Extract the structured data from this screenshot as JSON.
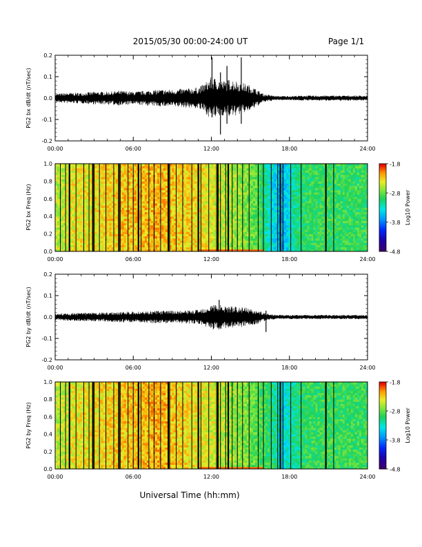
{
  "header": {
    "title": "2015/05/30  00:00-24:00 UT",
    "page": "Page 1/1"
  },
  "footer": {
    "xlabel": "Universal Time (hh:mm)"
  },
  "chart_data": [
    {
      "type": "line",
      "id": "bx-waveform",
      "ylabel": "PG2 bx dB/dt (nT/sec)",
      "xlim": [
        0,
        24
      ],
      "ylim": [
        -0.2,
        0.2
      ],
      "xticks": [
        "00:00",
        "06:00",
        "12:00",
        "18:00",
        "24:00"
      ],
      "yticks": [
        "-0.2",
        "-0.1",
        "0.0",
        "0.1",
        "0.2"
      ],
      "series": [
        {
          "x": [
            0,
            1,
            2,
            3,
            4,
            5,
            6,
            7,
            8,
            9,
            10,
            11,
            11.5,
            12,
            12.5,
            13,
            13.5,
            14,
            14.5,
            15,
            15.5,
            16,
            17,
            18,
            19,
            20,
            21,
            22,
            23,
            24
          ],
          "amplitude": [
            0.02,
            0.025,
            0.025,
            0.03,
            0.03,
            0.035,
            0.03,
            0.035,
            0.04,
            0.04,
            0.045,
            0.05,
            0.07,
            0.1,
            0.09,
            0.08,
            0.09,
            0.08,
            0.07,
            0.06,
            0.04,
            0.02,
            0.01,
            0.01,
            0.012,
            0.012,
            0.012,
            0.012,
            0.012,
            0.012
          ]
        }
      ],
      "spikes": [
        {
          "x": 12.05,
          "max": 0.19,
          "min": -0.09
        },
        {
          "x": 12.7,
          "max": 0.12,
          "min": -0.17
        },
        {
          "x": 14.3,
          "max": 0.19,
          "min": -0.12
        },
        {
          "x": 13.2,
          "max": 0.15,
          "min": -0.12
        }
      ]
    },
    {
      "type": "heatmap",
      "id": "bx-spectrogram",
      "ylabel": "PG2 bx Freq (Hz)",
      "xlim": [
        0,
        24
      ],
      "ylim": [
        0,
        1
      ],
      "xticks": [
        "00:00",
        "06:00",
        "12:00",
        "18:00",
        "24:00"
      ],
      "yticks": [
        "0.0",
        "0.2",
        "0.4",
        "0.6",
        "0.8",
        "1.0"
      ],
      "colorbar": {
        "label": "Log10 Power",
        "range": [
          -4.8,
          -1.8
        ],
        "ticks": [
          "-1.8",
          "-2.8",
          "-3.8",
          "-4.8"
        ]
      },
      "level_by_hour": [
        -2.55,
        -2.4,
        -2.4,
        -2.35,
        -2.3,
        -2.25,
        -2.25,
        -2.2,
        -2.25,
        -2.3,
        -2.3,
        -2.4,
        -2.5,
        -2.6,
        -2.7,
        -2.85,
        -3.3,
        -3.6,
        -3.1,
        -2.95,
        -2.95,
        -2.95,
        -2.95,
        -2.95
      ],
      "gap_lines": [
        0.4,
        0.8,
        1.1,
        1.6,
        2.2,
        2.6,
        3.0,
        3.4,
        3.9,
        4.5,
        5.0,
        5.6,
        6.0,
        6.6,
        7.2,
        7.6,
        8.1,
        8.8,
        9.3,
        9.8,
        10.5,
        11.2,
        11.8,
        12.4,
        12.7,
        13.1,
        13.3,
        13.6,
        14.0,
        14.4,
        14.9,
        15.6,
        16.0,
        16.6,
        17.1,
        17.5,
        18.1,
        18.9,
        20.8,
        21.4
      ],
      "gap_lines_thick": [
        1.1,
        2.9,
        4.9,
        6.4,
        8.7,
        11.0,
        12.5,
        13.3,
        17.3,
        20.8
      ]
    },
    {
      "type": "line",
      "id": "by-waveform",
      "ylabel": "PG2 by dB/dt (nT/sec)",
      "xlim": [
        0,
        24
      ],
      "ylim": [
        -0.2,
        0.2
      ],
      "xticks": [
        "00:00",
        "06:00",
        "12:00",
        "18:00",
        "24:00"
      ],
      "yticks": [
        "-0.2",
        "-0.1",
        "0.0",
        "0.1",
        "0.2"
      ],
      "series": [
        {
          "x": [
            0,
            1,
            2,
            3,
            4,
            5,
            6,
            7,
            8,
            9,
            10,
            11,
            11.5,
            12,
            12.5,
            13,
            13.5,
            14,
            14.5,
            15,
            15.5,
            16,
            17,
            18,
            19,
            20,
            21,
            22,
            23,
            24
          ],
          "amplitude": [
            0.015,
            0.018,
            0.02,
            0.02,
            0.022,
            0.025,
            0.025,
            0.028,
            0.03,
            0.03,
            0.03,
            0.035,
            0.045,
            0.06,
            0.06,
            0.055,
            0.05,
            0.05,
            0.045,
            0.04,
            0.035,
            0.02,
            0.01,
            0.01,
            0.01,
            0.01,
            0.01,
            0.01,
            0.01,
            0.01
          ]
        }
      ],
      "spikes": [
        {
          "x": 12.6,
          "max": 0.08,
          "min": -0.05
        },
        {
          "x": 16.2,
          "max": 0.03,
          "min": -0.07
        }
      ]
    },
    {
      "type": "heatmap",
      "id": "by-spectrogram",
      "ylabel": "PG2 by Freq (Hz)",
      "xlim": [
        0,
        24
      ],
      "ylim": [
        0,
        1
      ],
      "xticks": [
        "00:00",
        "06:00",
        "12:00",
        "18:00",
        "24:00"
      ],
      "yticks": [
        "0.0",
        "0.2",
        "0.4",
        "0.6",
        "0.8",
        "1.0"
      ],
      "colorbar": {
        "label": "Log10 Power",
        "range": [
          -4.8,
          -1.8
        ],
        "ticks": [
          "-1.8",
          "-2.8",
          "-3.8",
          "-4.8"
        ]
      },
      "level_by_hour": [
        -2.55,
        -2.4,
        -2.4,
        -2.35,
        -2.3,
        -2.25,
        -2.25,
        -2.2,
        -2.2,
        -2.3,
        -2.35,
        -2.45,
        -2.5,
        -2.65,
        -2.7,
        -2.85,
        -3.0,
        -3.4,
        -3.1,
        -2.95,
        -2.95,
        -2.95,
        -2.95,
        -2.95
      ],
      "gap_lines": [
        0.4,
        0.8,
        1.1,
        1.6,
        2.2,
        2.6,
        3.0,
        3.4,
        3.9,
        4.5,
        5.0,
        5.6,
        6.0,
        6.6,
        7.2,
        7.6,
        8.1,
        8.8,
        9.3,
        9.8,
        10.5,
        11.2,
        11.8,
        12.4,
        12.7,
        13.1,
        13.3,
        13.6,
        14.0,
        14.4,
        14.9,
        15.6,
        16.0,
        16.6,
        17.1,
        17.5,
        18.1,
        18.9,
        20.8,
        21.4
      ],
      "gap_lines_thick": [
        1.1,
        2.9,
        4.9,
        6.4,
        8.7,
        11.0,
        12.5,
        13.3,
        17.3,
        20.8
      ]
    }
  ]
}
